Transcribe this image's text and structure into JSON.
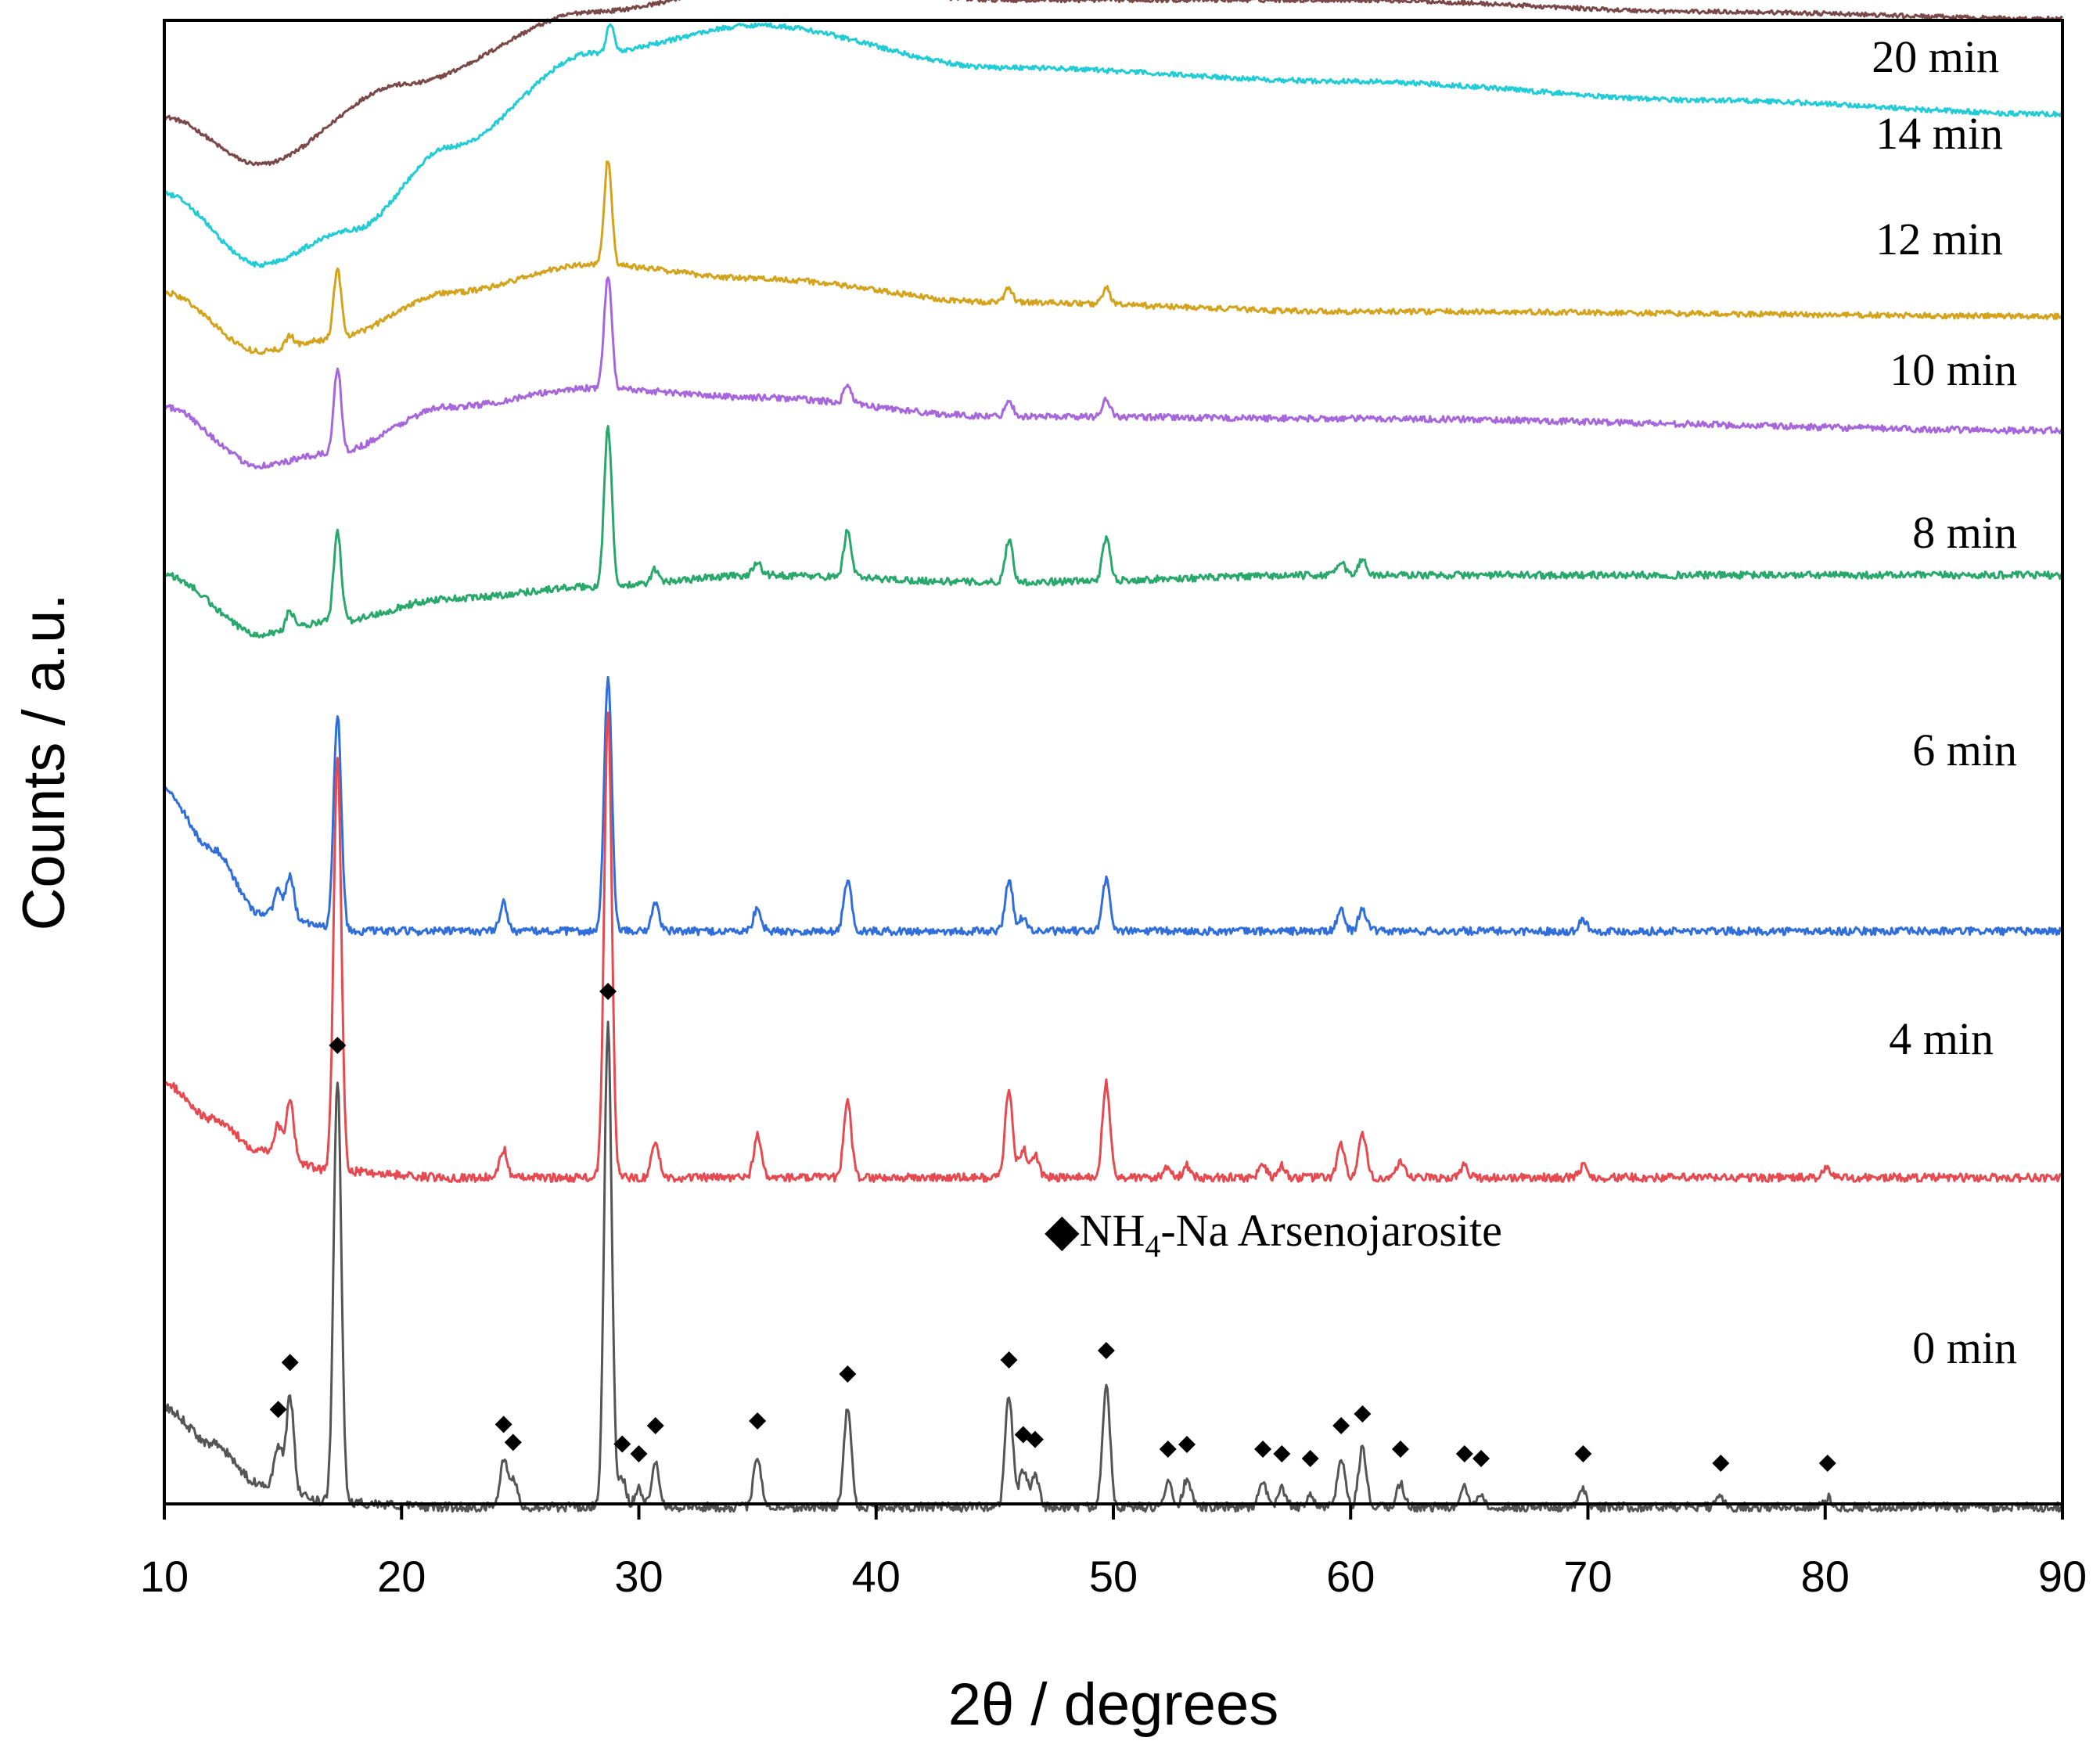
{
  "chart_data": {
    "type": "line",
    "title": "",
    "xlabel": "2θ / degrees",
    "ylabel": "Counts / a.u.",
    "xlim": [
      10,
      90
    ],
    "xticks": [
      10,
      20,
      30,
      40,
      50,
      60,
      70,
      80,
      90
    ],
    "yticks_shown": false,
    "legend": {
      "marker": "◆",
      "text_prefix": "NH",
      "subscript": "4",
      "text_suffix": "-Na Arsenojarosite",
      "position": "upper-middle"
    },
    "marker_positions_deg": [
      14.8,
      15.3,
      17.3,
      24.3,
      24.7,
      28.7,
      29.3,
      30.0,
      30.7,
      35.0,
      38.8,
      45.6,
      46.2,
      46.7,
      49.7,
      52.3,
      53.1,
      56.3,
      57.1,
      58.3,
      59.6,
      60.5,
      62.1,
      64.8,
      65.5,
      69.8,
      75.6,
      80.1
    ],
    "series": [
      {
        "name": "20 min",
        "label": "20 min",
        "color": "#7b4848",
        "baseline": [
          [
            10,
            0.0
          ],
          [
            14,
            -0.02
          ],
          [
            20,
            0.014
          ],
          [
            28,
            0.045
          ],
          [
            36,
            0.058
          ],
          [
            45,
            0.05
          ],
          [
            60,
            0.05
          ],
          [
            75,
            0.045
          ],
          [
            90,
            0.042
          ]
        ],
        "peaks": []
      },
      {
        "name": "14 min",
        "label": "14 min",
        "color": "#22ccd6",
        "baseline": [
          [
            10,
            0.0
          ],
          [
            14,
            -0.03
          ],
          [
            18,
            -0.015
          ],
          [
            22,
            0.02
          ],
          [
            28,
            0.06
          ],
          [
            35,
            0.072
          ],
          [
            45,
            0.054
          ],
          [
            60,
            0.048
          ],
          [
            75,
            0.04
          ],
          [
            90,
            0.034
          ]
        ],
        "peaks": [
          [
            28.8,
            0.012
          ]
        ]
      },
      {
        "name": "12 min",
        "label": "12 min",
        "color": "#d4a31c",
        "baseline": [
          [
            10,
            0.0
          ],
          [
            14,
            -0.025
          ],
          [
            17,
            -0.02
          ],
          [
            22,
            0.0
          ],
          [
            28,
            0.012
          ],
          [
            35,
            0.006
          ],
          [
            45,
            -0.004
          ],
          [
            60,
            -0.008
          ],
          [
            90,
            -0.01
          ]
        ],
        "peaks": [
          [
            15.3,
            0.005
          ],
          [
            17.3,
            0.03
          ],
          [
            28.7,
            0.045
          ],
          [
            45.6,
            0.006
          ],
          [
            49.7,
            0.007
          ]
        ]
      },
      {
        "name": "10 min",
        "label": "10 min",
        "color": "#a666dc",
        "baseline": [
          [
            10,
            0.0
          ],
          [
            14,
            -0.025
          ],
          [
            17,
            -0.02
          ],
          [
            22,
            0.0
          ],
          [
            28,
            0.008
          ],
          [
            35,
            0.004
          ],
          [
            45,
            -0.004
          ],
          [
            60,
            -0.005
          ],
          [
            90,
            -0.01
          ]
        ],
        "peaks": [
          [
            17.3,
            0.036
          ],
          [
            28.7,
            0.048
          ],
          [
            38.8,
            0.008
          ],
          [
            45.6,
            0.007
          ],
          [
            49.7,
            0.008
          ]
        ]
      },
      {
        "name": "8 min",
        "label": "8 min",
        "color": "#28a86a",
        "baseline": [
          [
            10,
            0.0
          ],
          [
            14,
            -0.025
          ],
          [
            17,
            -0.02
          ],
          [
            22,
            -0.01
          ],
          [
            28,
            -0.005
          ],
          [
            35,
            0.0
          ],
          [
            45,
            -0.003
          ],
          [
            60,
            0.0
          ],
          [
            90,
            0.0
          ]
        ],
        "peaks": [
          [
            15.3,
            0.008
          ],
          [
            17.3,
            0.038
          ],
          [
            28.7,
            0.068
          ],
          [
            30.7,
            0.006
          ],
          [
            35.0,
            0.006
          ],
          [
            38.8,
            0.02
          ],
          [
            45.6,
            0.018
          ],
          [
            49.7,
            0.018
          ],
          [
            59.6,
            0.006
          ],
          [
            60.5,
            0.007
          ]
        ]
      },
      {
        "name": "6 min",
        "label": "6 min",
        "color": "#2f6edb",
        "baseline": [
          [
            10,
            0.0
          ],
          [
            12,
            -0.025
          ],
          [
            14,
            -0.052
          ],
          [
            18,
            -0.06
          ],
          [
            25,
            -0.06
          ],
          [
            90,
            -0.06
          ]
        ],
        "peaks": [
          [
            14.8,
            0.01
          ],
          [
            15.3,
            0.018
          ],
          [
            17.3,
            0.092
          ],
          [
            24.3,
            0.012
          ],
          [
            28.7,
            0.108
          ],
          [
            30.7,
            0.012
          ],
          [
            35.0,
            0.01
          ],
          [
            38.8,
            0.022
          ],
          [
            45.6,
            0.022
          ],
          [
            46.2,
            0.006
          ],
          [
            49.7,
            0.022
          ],
          [
            59.6,
            0.009
          ],
          [
            60.5,
            0.01
          ],
          [
            69.8,
            0.005
          ]
        ]
      },
      {
        "name": "4 min",
        "label": "4 min",
        "color": "#e64a50",
        "baseline": [
          [
            10,
            0.0
          ],
          [
            12,
            -0.015
          ],
          [
            14,
            -0.028
          ],
          [
            17,
            -0.037
          ],
          [
            22,
            -0.04
          ],
          [
            90,
            -0.04
          ]
        ],
        "peaks": [
          [
            14.8,
            0.012
          ],
          [
            15.3,
            0.025
          ],
          [
            17.3,
            0.176
          ],
          [
            24.3,
            0.012
          ],
          [
            28.7,
            0.198
          ],
          [
            30.7,
            0.015
          ],
          [
            35.0,
            0.018
          ],
          [
            38.8,
            0.032
          ],
          [
            45.6,
            0.038
          ],
          [
            46.2,
            0.012
          ],
          [
            46.7,
            0.01
          ],
          [
            49.7,
            0.04
          ],
          [
            52.3,
            0.005
          ],
          [
            53.1,
            0.005
          ],
          [
            56.3,
            0.006
          ],
          [
            57.1,
            0.005
          ],
          [
            59.6,
            0.014
          ],
          [
            60.5,
            0.018
          ],
          [
            62.1,
            0.006
          ],
          [
            64.8,
            0.005
          ],
          [
            69.8,
            0.005
          ],
          [
            80.1,
            0.004
          ]
        ]
      },
      {
        "name": "0 min",
        "label": "0 min",
        "color": "#555555",
        "baseline": [
          [
            10,
            0.0
          ],
          [
            12,
            -0.015
          ],
          [
            14,
            -0.032
          ],
          [
            17,
            -0.04
          ],
          [
            22,
            -0.042
          ],
          [
            90,
            -0.042
          ]
        ],
        "peaks": [
          [
            14.8,
            0.018
          ],
          [
            15.3,
            0.04
          ],
          [
            17.3,
            0.18
          ],
          [
            24.3,
            0.02
          ],
          [
            24.7,
            0.012
          ],
          [
            28.7,
            0.205
          ],
          [
            29.3,
            0.012
          ],
          [
            30.0,
            0.008
          ],
          [
            30.7,
            0.02
          ],
          [
            35.0,
            0.022
          ],
          [
            38.8,
            0.042
          ],
          [
            45.6,
            0.048
          ],
          [
            46.2,
            0.016
          ],
          [
            46.7,
            0.014
          ],
          [
            49.7,
            0.052
          ],
          [
            52.3,
            0.01
          ],
          [
            53.1,
            0.012
          ],
          [
            56.3,
            0.01
          ],
          [
            57.1,
            0.008
          ],
          [
            58.3,
            0.006
          ],
          [
            59.6,
            0.02
          ],
          [
            60.5,
            0.025
          ],
          [
            62.1,
            0.01
          ],
          [
            64.8,
            0.008
          ],
          [
            65.5,
            0.006
          ],
          [
            69.8,
            0.008
          ],
          [
            75.6,
            0.004
          ],
          [
            80.1,
            0.004
          ]
        ]
      }
    ]
  }
}
